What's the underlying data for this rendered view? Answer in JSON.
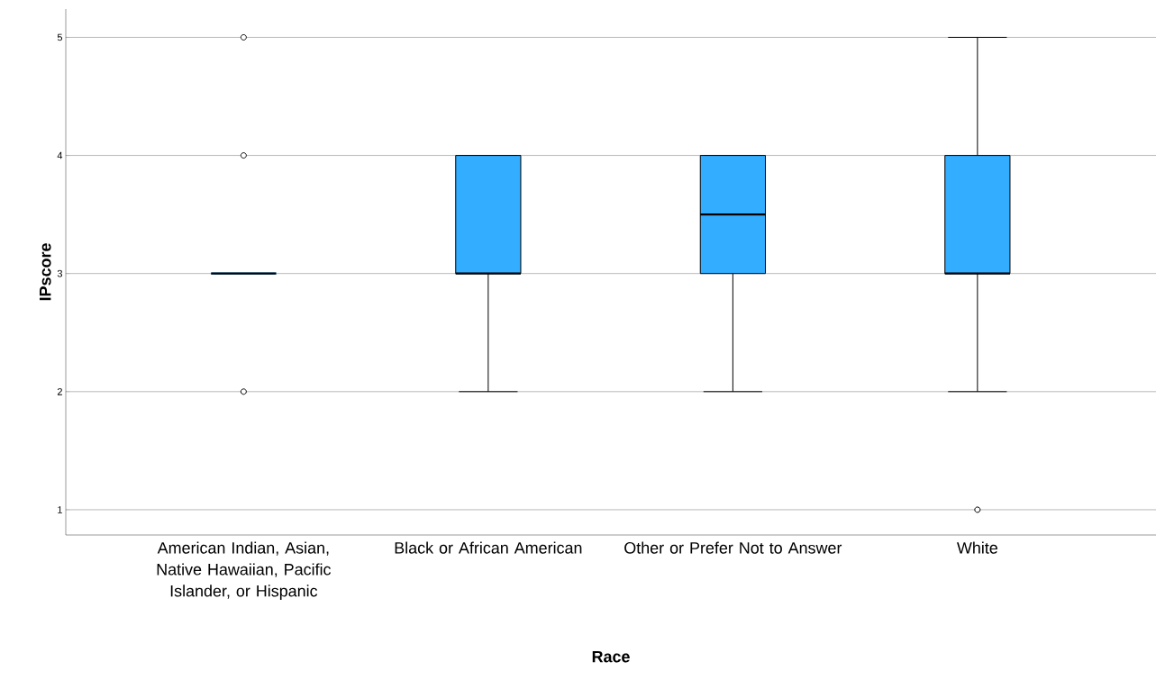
{
  "chart_data": {
    "type": "box",
    "xlabel": "Race",
    "ylabel": "IPscore",
    "categories": [
      "American Indian, Asian, Native Hawaiian, Pacific Islander, or Hispanic",
      "Black or African American",
      "Other or Prefer Not to Answer",
      "White"
    ],
    "color": "#33adff",
    "boxes": [
      {
        "low": 3,
        "q1": 3,
        "median": 3,
        "q3": 3,
        "high": 3,
        "outliers": [
          2,
          4,
          5
        ]
      },
      {
        "low": 2,
        "q1": 3,
        "median": 3,
        "q3": 4,
        "high": 4
      },
      {
        "low": 2,
        "q1": 3,
        "median": 3.5,
        "q3": 4,
        "high": 4
      },
      {
        "low": 2,
        "q1": 3,
        "median": 3,
        "q3": 4,
        "high": 5,
        "outliers": [
          1
        ]
      }
    ],
    "ylim": [
      0.786,
      5.24
    ],
    "yticks": [
      1,
      2,
      3,
      4,
      5
    ],
    "grid": "y"
  }
}
